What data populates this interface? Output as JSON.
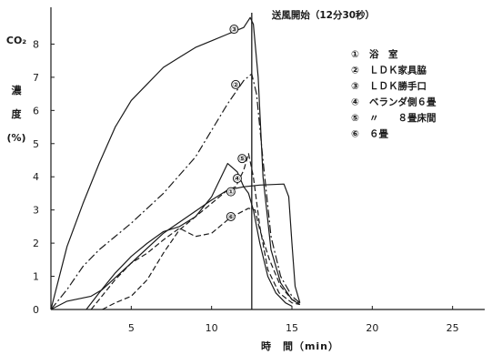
{
  "chart_data": {
    "type": "line",
    "xlabel": "時　間（min）",
    "ylabel_lines": [
      "CO₂",
      "濃",
      "度",
      "(%)"
    ],
    "xlim": [
      0,
      27
    ],
    "ylim": [
      0,
      9
    ],
    "x_ticks": [
      5,
      10,
      15,
      20,
      25
    ],
    "y_ticks": [
      0,
      1,
      2,
      3,
      4,
      5,
      6,
      7,
      8
    ],
    "grid": false,
    "legend_position": "top-right",
    "annotation": {
      "text": "送風開始（12分30秒）",
      "x": 12.5
    },
    "series": [
      {
        "marker": "①",
        "name": "浴　室",
        "style": "solid",
        "points": [
          [
            0,
            0
          ],
          [
            1,
            0.25
          ],
          [
            2.5,
            0.4
          ],
          [
            3.2,
            0.6
          ],
          [
            5,
            1.4
          ],
          [
            7,
            2.3
          ],
          [
            8.5,
            2.8
          ],
          [
            10,
            3.3
          ],
          [
            11,
            3.6
          ],
          [
            12,
            3.7
          ],
          [
            13,
            3.75
          ],
          [
            14.5,
            3.78
          ],
          [
            14.8,
            3.4
          ],
          [
            15,
            2.0
          ],
          [
            15.2,
            0.7
          ],
          [
            15.5,
            0.2
          ]
        ]
      },
      {
        "marker": "②",
        "name": "ＬＤＫ家具脇",
        "style": "dashdot",
        "points": [
          [
            0,
            0
          ],
          [
            1,
            0.6
          ],
          [
            2,
            1.3
          ],
          [
            3,
            1.8
          ],
          [
            5,
            2.6
          ],
          [
            7,
            3.5
          ],
          [
            9,
            4.6
          ],
          [
            11,
            6.2
          ],
          [
            12,
            6.9
          ],
          [
            12.5,
            7.1
          ],
          [
            12.8,
            6.5
          ],
          [
            13.2,
            4.5
          ],
          [
            13.7,
            2.2
          ],
          [
            14.3,
            1.0
          ],
          [
            15,
            0.4
          ],
          [
            15.5,
            0.2
          ]
        ]
      },
      {
        "marker": "③",
        "name": "ＬＤＫ勝手口",
        "style": "solid",
        "points": [
          [
            0,
            0
          ],
          [
            1,
            1.9
          ],
          [
            2,
            3.2
          ],
          [
            3,
            4.4
          ],
          [
            4,
            5.5
          ],
          [
            5,
            6.3
          ],
          [
            6,
            6.8
          ],
          [
            7,
            7.3
          ],
          [
            8,
            7.6
          ],
          [
            9,
            7.9
          ],
          [
            10,
            8.1
          ],
          [
            11,
            8.3
          ],
          [
            12,
            8.5
          ],
          [
            12.4,
            8.8
          ],
          [
            12.6,
            8.6
          ],
          [
            12.9,
            7.0
          ],
          [
            13.2,
            4.0
          ],
          [
            13.7,
            1.8
          ],
          [
            14.3,
            0.8
          ],
          [
            15,
            0.3
          ],
          [
            15.5,
            0.15
          ]
        ]
      },
      {
        "marker": "④",
        "name": "ベランダ側６畳",
        "style": "solid",
        "points": [
          [
            2.2,
            0
          ],
          [
            3,
            0.5
          ],
          [
            4,
            1.1
          ],
          [
            5,
            1.6
          ],
          [
            6,
            2.0
          ],
          [
            7,
            2.35
          ],
          [
            8,
            2.5
          ],
          [
            9,
            2.8
          ],
          [
            10,
            3.4
          ],
          [
            10.5,
            3.9
          ],
          [
            11,
            4.4
          ],
          [
            11.6,
            4.15
          ],
          [
            12,
            3.7
          ],
          [
            12.3,
            3.5
          ],
          [
            12.6,
            3.0
          ],
          [
            13,
            2.0
          ],
          [
            13.5,
            1.0
          ],
          [
            14,
            0.5
          ],
          [
            14.6,
            0.2
          ],
          [
            15,
            0.1
          ]
        ]
      },
      {
        "marker": "⑤",
        "name": "〃　　８畳床間",
        "style": "dashed",
        "points": [
          [
            3.2,
            0
          ],
          [
            4,
            0.2
          ],
          [
            5,
            0.4
          ],
          [
            6,
            0.9
          ],
          [
            7,
            1.7
          ],
          [
            8,
            2.4
          ],
          [
            9,
            2.8
          ],
          [
            10,
            3.2
          ],
          [
            10.5,
            3.4
          ],
          [
            11,
            3.6
          ],
          [
            11.5,
            3.7
          ],
          [
            12,
            4.2
          ],
          [
            12.3,
            4.7
          ],
          [
            12.6,
            4.0
          ],
          [
            13,
            2.5
          ],
          [
            13.5,
            1.2
          ],
          [
            14.2,
            0.5
          ],
          [
            15,
            0.2
          ],
          [
            15.5,
            0.15
          ]
        ]
      },
      {
        "marker": "⑥",
        "name": "６畳",
        "style": "dashed",
        "points": [
          [
            2.5,
            0
          ],
          [
            3,
            0.3
          ],
          [
            4,
            0.9
          ],
          [
            5,
            1.4
          ],
          [
            6,
            1.7
          ],
          [
            7,
            2.1
          ],
          [
            8,
            2.45
          ],
          [
            9,
            2.2
          ],
          [
            10,
            2.3
          ],
          [
            11,
            2.7
          ],
          [
            11.7,
            2.9
          ],
          [
            12.3,
            3.05
          ],
          [
            12.7,
            3.0
          ],
          [
            13,
            2.4
          ],
          [
            13.6,
            1.5
          ],
          [
            14.3,
            0.7
          ],
          [
            15,
            0.3
          ],
          [
            15.5,
            0.2
          ]
        ]
      }
    ],
    "marker_positions": [
      {
        "marker": "①",
        "x": 11.2,
        "y": 3.55
      },
      {
        "marker": "②",
        "x": 11.5,
        "y": 6.78
      },
      {
        "marker": "③",
        "x": 11.4,
        "y": 8.45
      },
      {
        "marker": "④",
        "x": 11.6,
        "y": 3.95
      },
      {
        "marker": "⑤",
        "x": 11.9,
        "y": 4.55
      },
      {
        "marker": "⑥",
        "x": 11.2,
        "y": 2.8
      }
    ]
  }
}
